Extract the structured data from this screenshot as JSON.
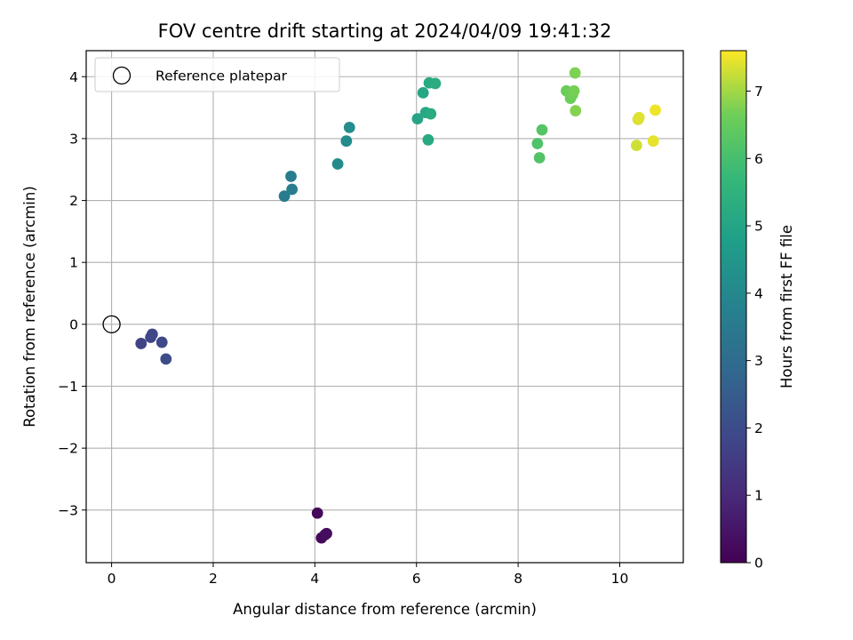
{
  "chart_data": {
    "type": "scatter",
    "title": "FOV centre drift starting at 2024/04/09 19:41:32",
    "xlabel": "Angular distance from reference (arcmin)",
    "ylabel": "Rotation from reference (arcmin)",
    "xlim": [
      -0.5,
      11.25
    ],
    "ylim": [
      -3.85,
      4.42
    ],
    "x_ticks": [
      0,
      2,
      4,
      6,
      8,
      10
    ],
    "y_ticks": [
      -3,
      -2,
      -1,
      0,
      1,
      2,
      3,
      4
    ],
    "grid": true,
    "legend_position": "upper-left",
    "legend": [
      {
        "label": "Reference platepar",
        "marker": "open-circle"
      }
    ],
    "reference_point": {
      "x": 0,
      "y": 0
    },
    "colorbar": {
      "label": "Hours from first FF file",
      "colormap": "viridis",
      "range": [
        0,
        7.6
      ],
      "ticks": [
        0,
        1,
        2,
        3,
        4,
        5,
        6,
        7
      ]
    },
    "points": [
      {
        "x": 4.05,
        "y": -3.05,
        "hours": 0.15
      },
      {
        "x": 4.13,
        "y": -3.45,
        "hours": 0.2
      },
      {
        "x": 4.2,
        "y": -3.4,
        "hours": 0.25
      },
      {
        "x": 4.23,
        "y": -3.38,
        "hours": 0.3
      },
      {
        "x": 0.58,
        "y": -0.31,
        "hours": 1.75
      },
      {
        "x": 0.77,
        "y": -0.21,
        "hours": 1.8
      },
      {
        "x": 0.8,
        "y": -0.16,
        "hours": 1.85
      },
      {
        "x": 0.99,
        "y": -0.29,
        "hours": 1.9
      },
      {
        "x": 1.07,
        "y": -0.56,
        "hours": 1.95
      },
      {
        "x": 3.4,
        "y": 2.07,
        "hours": 3.55
      },
      {
        "x": 3.53,
        "y": 2.39,
        "hours": 3.6
      },
      {
        "x": 3.55,
        "y": 2.18,
        "hours": 3.65
      },
      {
        "x": 4.45,
        "y": 2.59,
        "hours": 4.1
      },
      {
        "x": 4.62,
        "y": 2.96,
        "hours": 4.15
      },
      {
        "x": 4.68,
        "y": 3.18,
        "hours": 4.2
      },
      {
        "x": 6.02,
        "y": 3.32,
        "hours": 5.0
      },
      {
        "x": 6.13,
        "y": 3.74,
        "hours": 5.05
      },
      {
        "x": 6.18,
        "y": 3.42,
        "hours": 5.1
      },
      {
        "x": 6.23,
        "y": 2.98,
        "hours": 5.15
      },
      {
        "x": 6.25,
        "y": 3.9,
        "hours": 5.2
      },
      {
        "x": 6.28,
        "y": 3.4,
        "hours": 5.25
      },
      {
        "x": 6.37,
        "y": 3.89,
        "hours": 5.3
      },
      {
        "x": 8.38,
        "y": 2.92,
        "hours": 6.15
      },
      {
        "x": 8.42,
        "y": 2.69,
        "hours": 6.2
      },
      {
        "x": 8.47,
        "y": 3.14,
        "hours": 6.25
      },
      {
        "x": 8.95,
        "y": 3.77,
        "hours": 6.55
      },
      {
        "x": 9.03,
        "y": 3.65,
        "hours": 6.6
      },
      {
        "x": 9.07,
        "y": 3.71,
        "hours": 6.65
      },
      {
        "x": 9.1,
        "y": 3.77,
        "hours": 6.7
      },
      {
        "x": 9.12,
        "y": 4.06,
        "hours": 6.75
      },
      {
        "x": 9.13,
        "y": 3.45,
        "hours": 6.8
      },
      {
        "x": 10.33,
        "y": 2.89,
        "hours": 7.3
      },
      {
        "x": 10.36,
        "y": 3.31,
        "hours": 7.35
      },
      {
        "x": 10.38,
        "y": 3.34,
        "hours": 7.4
      },
      {
        "x": 10.66,
        "y": 2.96,
        "hours": 7.45
      },
      {
        "x": 10.7,
        "y": 3.46,
        "hours": 7.5
      }
    ]
  }
}
